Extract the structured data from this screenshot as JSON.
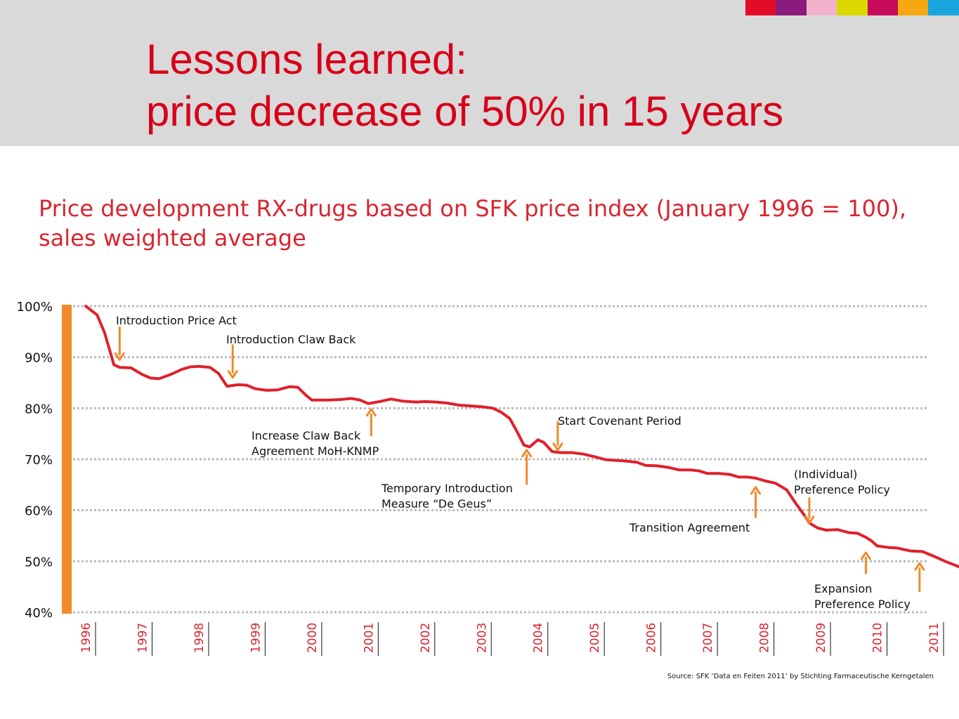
{
  "header": {
    "title_line1": "Lessons learned:",
    "title_line2": "price decrease of 50% in 15 years",
    "color_strip": [
      "#e30c26",
      "#8b1a7d",
      "#f2b2cc",
      "#dcd800",
      "#c70a5a",
      "#f7a712",
      "#19a6e0"
    ]
  },
  "subtitle": {
    "line1": "Price development RX-drugs based on SFK price index (January 1996 = 100),",
    "line2": "sales weighted average"
  },
  "chart_data": {
    "type": "line",
    "colors": {
      "line": "#e0202b",
      "arrows": "#f08a2a",
      "axis_bar": "#f08a2a",
      "grid": "#bbbbbb",
      "text_red": "#d9252f"
    },
    "grid": true,
    "ylim": [
      40,
      100
    ],
    "y_ticks": [
      "100%",
      "90%",
      "80%",
      "70%",
      "60%",
      "50%",
      "40%"
    ],
    "y_tick_values": [
      100,
      90,
      80,
      70,
      60,
      50,
      40
    ],
    "x_ticks": [
      "1996",
      "1997",
      "1998",
      "1999",
      "2000",
      "2001",
      "2002",
      "2003",
      "2004",
      "2005",
      "2006",
      "2007",
      "2008",
      "2009",
      "2010",
      "2011"
    ],
    "xlim": [
      1996.0,
      2011.0
    ],
    "series": [
      {
        "values": [
          [
            1996.0,
            100.0
          ],
          [
            1996.2,
            98.3
          ],
          [
            1996.33,
            94.9
          ],
          [
            1996.5,
            88.5
          ],
          [
            1996.6,
            88.0
          ],
          [
            1996.8,
            87.9
          ],
          [
            1997.0,
            86.6
          ],
          [
            1997.15,
            85.9
          ],
          [
            1997.3,
            85.8
          ],
          [
            1997.5,
            86.6
          ],
          [
            1997.7,
            87.6
          ],
          [
            1997.85,
            88.1
          ],
          [
            1998.0,
            88.2
          ],
          [
            1998.2,
            88.0
          ],
          [
            1998.35,
            86.8
          ],
          [
            1998.5,
            84.3
          ],
          [
            1998.7,
            84.6
          ],
          [
            1998.85,
            84.5
          ],
          [
            1999.0,
            83.8
          ],
          [
            1999.2,
            83.5
          ],
          [
            1999.4,
            83.6
          ],
          [
            1999.6,
            84.2
          ],
          [
            1999.75,
            84.1
          ],
          [
            1999.9,
            82.5
          ],
          [
            2000.0,
            81.6
          ],
          [
            2000.3,
            81.6
          ],
          [
            2000.5,
            81.7
          ],
          [
            2000.7,
            81.9
          ],
          [
            2000.85,
            81.6
          ],
          [
            2001.0,
            80.9
          ],
          [
            2001.2,
            81.3
          ],
          [
            2001.4,
            81.8
          ],
          [
            2001.6,
            81.4
          ],
          [
            2001.85,
            81.2
          ],
          [
            2002.0,
            81.3
          ],
          [
            2002.2,
            81.2
          ],
          [
            2002.4,
            81.0
          ],
          [
            2002.6,
            80.6
          ],
          [
            2002.85,
            80.4
          ],
          [
            2003.0,
            80.3
          ],
          [
            2003.2,
            80.0
          ],
          [
            2003.35,
            79.2
          ],
          [
            2003.5,
            78.0
          ],
          [
            2003.62,
            75.6
          ],
          [
            2003.75,
            72.8
          ],
          [
            2003.85,
            72.4
          ],
          [
            2004.0,
            73.8
          ],
          [
            2004.1,
            73.3
          ],
          [
            2004.25,
            71.5
          ],
          [
            2004.4,
            71.3
          ],
          [
            2004.6,
            71.3
          ],
          [
            2004.8,
            71.0
          ],
          [
            2005.0,
            70.5
          ],
          [
            2005.2,
            69.9
          ],
          [
            2005.5,
            69.7
          ],
          [
            2005.75,
            69.4
          ],
          [
            2005.9,
            68.8
          ],
          [
            2006.1,
            68.7
          ],
          [
            2006.3,
            68.4
          ],
          [
            2006.5,
            67.9
          ],
          [
            2006.7,
            67.9
          ],
          [
            2006.85,
            67.7
          ],
          [
            2007.0,
            67.2
          ],
          [
            2007.2,
            67.2
          ],
          [
            2007.4,
            67.0
          ],
          [
            2007.55,
            66.5
          ],
          [
            2007.7,
            66.5
          ],
          [
            2007.85,
            66.3
          ],
          [
            2008.0,
            65.8
          ],
          [
            2008.2,
            65.3
          ],
          [
            2008.4,
            64.0
          ],
          [
            2008.55,
            61.5
          ],
          [
            2008.7,
            59.2
          ],
          [
            2008.8,
            57.5
          ],
          [
            2008.95,
            56.5
          ],
          [
            2009.1,
            56.1
          ],
          [
            2009.3,
            56.2
          ],
          [
            2009.5,
            55.6
          ],
          [
            2009.65,
            55.5
          ],
          [
            2009.8,
            54.7
          ],
          [
            2009.9,
            54.0
          ],
          [
            2010.0,
            53.0
          ],
          [
            2010.2,
            52.7
          ],
          [
            2010.35,
            52.6
          ],
          [
            2010.6,
            52.0
          ],
          [
            2010.8,
            51.9
          ],
          [
            2011.0,
            51.0
          ],
          [
            2011.2,
            50.0
          ],
          [
            2011.45,
            48.9
          ]
        ]
      }
    ],
    "annotations": [
      {
        "lines": [
          "Introduction Price Act"
        ],
        "arrow_x": 1996.6,
        "arrow_from": 96.0,
        "arrow_to": 89.5,
        "direction": "down"
      },
      {
        "lines": [
          "Introduction Claw Back"
        ],
        "arrow_x": 1998.6,
        "arrow_from": 92.5,
        "arrow_to": 86.0,
        "direction": "down"
      },
      {
        "lines": [
          "Increase Claw Back",
          "Agreement MoH-KNMP"
        ],
        "arrow_x": 2001.05,
        "arrow_from": 74.5,
        "arrow_to": 79.8,
        "direction": "up"
      },
      {
        "lines": [
          "Start Covenant Period"
        ],
        "arrow_x": 2004.35,
        "arrow_from": 77.5,
        "arrow_to": 71.8,
        "direction": "down"
      },
      {
        "lines": [
          "Temporary Introduction",
          "Measure “De Geus”"
        ],
        "arrow_x": 2003.8,
        "arrow_from": 65.0,
        "arrow_to": 71.8,
        "direction": "up"
      },
      {
        "lines": [
          "(Individual)",
          "Preference Policy"
        ],
        "arrow_x": 2008.8,
        "arrow_from": 62.5,
        "arrow_to": 57.5,
        "direction": "down"
      },
      {
        "lines": [
          "Transition Agreement"
        ],
        "arrow_x": 2007.85,
        "arrow_from": 58.5,
        "arrow_to": 64.5,
        "direction": "up"
      },
      {
        "lines": [
          "Expansion",
          "Preference Policy"
        ],
        "arrow_x": 2009.8,
        "arrow_from": 47.5,
        "arrow_to": 51.7,
        "direction": "up"
      },
      {
        "lines": [],
        "arrow_x": 2010.75,
        "arrow_from": 44.0,
        "arrow_to": 49.6,
        "direction": "up"
      }
    ],
    "source": "Source: SFK ‘Data en Feiten 2011’ by Stichting Farmaceutische Kerngetalen"
  }
}
